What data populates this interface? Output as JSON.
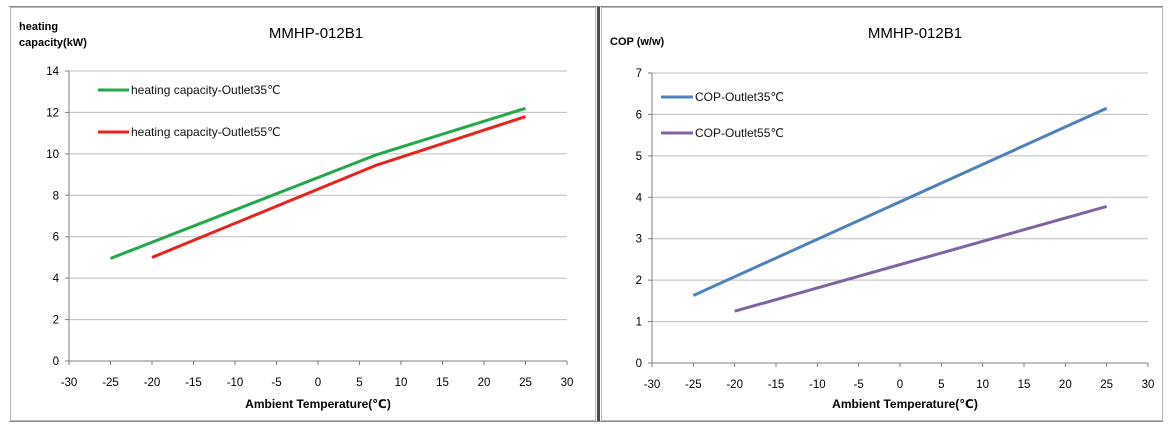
{
  "chart_data": [
    {
      "type": "line",
      "title": "MMHP-012B1",
      "ylabel_lines": [
        "heating",
        "capacity(kW)"
      ],
      "xlabel": "Ambient Temperature(℃)",
      "xlim": [
        -30,
        30
      ],
      "ylim": [
        0,
        14
      ],
      "xticks": [
        -30,
        -25,
        -20,
        -15,
        -10,
        -5,
        0,
        5,
        10,
        15,
        20,
        25,
        30
      ],
      "yticks": [
        0,
        2,
        4,
        6,
        8,
        10,
        12,
        14
      ],
      "grid": "horizontal",
      "legend": "top-left",
      "series": [
        {
          "name": "heating capacity-Outlet35℃",
          "color": "#22a84a",
          "points": [
            [
              -25,
              4.95
            ],
            [
              7,
              9.95
            ],
            [
              25,
              12.2
            ]
          ]
        },
        {
          "name": "heating capacity-Outlet55℃",
          "color": "#e8221e",
          "points": [
            [
              -20,
              5.0
            ],
            [
              7,
              9.45
            ],
            [
              25,
              11.8
            ]
          ]
        }
      ]
    },
    {
      "type": "line",
      "title": "MMHP-012B1",
      "ylabel_lines": [
        "COP (w/w)"
      ],
      "xlabel": "Ambient Temperature(℃)",
      "xlim": [
        -30,
        30
      ],
      "ylim": [
        0,
        7
      ],
      "xticks": [
        -30,
        -25,
        -20,
        -15,
        -10,
        -5,
        0,
        5,
        10,
        15,
        20,
        25,
        30
      ],
      "yticks": [
        0,
        1,
        2,
        3,
        4,
        5,
        6,
        7
      ],
      "grid": "horizontal",
      "legend": "top-left",
      "series": [
        {
          "name": "COP-Outlet35℃",
          "color": "#4f81bd",
          "points": [
            [
              -25,
              1.63
            ],
            [
              25,
              6.15
            ]
          ]
        },
        {
          "name": "COP-Outlet55℃",
          "color": "#8064a2",
          "points": [
            [
              -20,
              1.25
            ],
            [
              25,
              3.78
            ]
          ]
        }
      ]
    }
  ]
}
